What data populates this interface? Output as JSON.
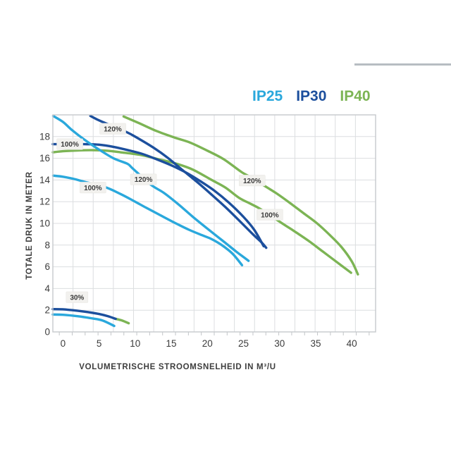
{
  "page": {
    "background": "#ffffff"
  },
  "legend": {
    "items": [
      {
        "label": "IP25",
        "color": "#2aa8dc"
      },
      {
        "label": "IP30",
        "color": "#1c4f9d"
      },
      {
        "label": "IP40",
        "color": "#7cb454"
      }
    ]
  },
  "axes": {
    "x_title": "VOLUMETRISCHE STROOMSNELHEID IN M³/U",
    "y_title": "TOTALE DRUK IN METER"
  },
  "chart_data": {
    "type": "line",
    "title": "",
    "xlabel": "VOLUMETRISCHE STROOMSNELHEID IN M³/U",
    "ylabel": "TOTALE DRUK IN METER",
    "xlim": [
      -1.4,
      43.3
    ],
    "ylim": [
      0,
      20
    ],
    "xticks": [
      0,
      5,
      10,
      15,
      20,
      25,
      30,
      35,
      40
    ],
    "yticks": [
      0,
      2,
      4,
      6,
      8,
      10,
      12,
      14,
      16,
      18
    ],
    "grid": true,
    "grid_columns": 16,
    "grid_rows": 10,
    "minor_tick_count": 25,
    "legend_position": "top-right",
    "style": {
      "grid_color": "#dcdee0",
      "frame_color": "#c6c9cc",
      "tick_text_color": "#3c3c3c",
      "annotation_bg": "#f2f1ee",
      "annotation_text": "#3a3a3a"
    },
    "colors": {
      "IP25": "#2aa8dc",
      "IP30": "#1c4f9d",
      "IP40": "#7cb454"
    },
    "series": [
      {
        "name": "IP40 120%",
        "model": "IP40",
        "speed": "120%",
        "points": [
          [
            8.4,
            19.85
          ],
          [
            10.5,
            19.25
          ],
          [
            13,
            18.5
          ],
          [
            15.5,
            17.9
          ],
          [
            17.6,
            17.45
          ],
          [
            20,
            16.7
          ],
          [
            22.3,
            15.9
          ],
          [
            24.8,
            14.7
          ],
          [
            26.5,
            14.1
          ],
          [
            27.7,
            13.55
          ],
          [
            29.5,
            12.8
          ],
          [
            31.3,
            11.95
          ],
          [
            33.3,
            10.95
          ],
          [
            35.2,
            10.0
          ],
          [
            37,
            8.9
          ],
          [
            38.6,
            7.8
          ],
          [
            40,
            6.5
          ],
          [
            40.85,
            5.3
          ]
        ]
      },
      {
        "name": "IP40 100%",
        "model": "IP40",
        "speed": "100%",
        "points": [
          [
            -1.4,
            16.55
          ],
          [
            0,
            16.65
          ],
          [
            2,
            16.72
          ],
          [
            4,
            16.75
          ],
          [
            6,
            16.7
          ],
          [
            8,
            16.55
          ],
          [
            10.8,
            16.3
          ],
          [
            13,
            15.95
          ],
          [
            15.7,
            15.5
          ],
          [
            18,
            14.95
          ],
          [
            20.6,
            14.0
          ],
          [
            22.5,
            13.3
          ],
          [
            24.4,
            12.35
          ],
          [
            26,
            11.8
          ],
          [
            27.4,
            11.3
          ],
          [
            30.6,
            9.9
          ],
          [
            32,
            9.3
          ],
          [
            34,
            8.4
          ],
          [
            36,
            7.4
          ],
          [
            38,
            6.4
          ],
          [
            39.9,
            5.45
          ]
        ]
      },
      {
        "name": "IP40 30%",
        "model": "IP40",
        "speed": "30%",
        "points": [
          [
            7.2,
            1.22
          ],
          [
            8.2,
            1.05
          ],
          [
            9.1,
            0.8
          ]
        ]
      },
      {
        "name": "IP30 120%",
        "model": "IP30",
        "speed": "120%",
        "points": [
          [
            3.8,
            19.9
          ],
          [
            5.3,
            19.4
          ],
          [
            8.7,
            18.45
          ],
          [
            10.5,
            17.8
          ],
          [
            12.6,
            16.95
          ],
          [
            14.5,
            16.05
          ],
          [
            16.4,
            15.0
          ],
          [
            18.6,
            13.8
          ],
          [
            20.5,
            12.7
          ],
          [
            22.5,
            11.5
          ],
          [
            24.5,
            10.2
          ],
          [
            26.3,
            9.0
          ],
          [
            27.5,
            8.25
          ],
          [
            28.15,
            7.75
          ]
        ]
      },
      {
        "name": "IP30 100%",
        "model": "IP30",
        "speed": "100%",
        "points": [
          [
            -1.4,
            17.3
          ],
          [
            0,
            17.3
          ],
          [
            3,
            17.3
          ],
          [
            5,
            17.25
          ],
          [
            7,
            17.05
          ],
          [
            9,
            16.75
          ],
          [
            11,
            16.4
          ],
          [
            13,
            15.9
          ],
          [
            15,
            15.35
          ],
          [
            17,
            14.7
          ],
          [
            19,
            13.9
          ],
          [
            21,
            13.0
          ],
          [
            23,
            11.9
          ],
          [
            25,
            10.6
          ],
          [
            26.5,
            9.4
          ],
          [
            27.8,
            7.9
          ]
        ]
      },
      {
        "name": "IP30 30%",
        "model": "IP30",
        "speed": "30%",
        "points": [
          [
            -1.4,
            2.1
          ],
          [
            0,
            2.08
          ],
          [
            2,
            1.95
          ],
          [
            3.5,
            1.82
          ],
          [
            5,
            1.65
          ],
          [
            6.2,
            1.45
          ],
          [
            7.3,
            1.2
          ]
        ]
      },
      {
        "name": "IP25 120%",
        "model": "IP25",
        "speed": "120%",
        "points": [
          [
            -1.35,
            19.9
          ],
          [
            0,
            19.35
          ],
          [
            1.25,
            18.6
          ],
          [
            3,
            17.7
          ],
          [
            5,
            16.8
          ],
          [
            7,
            16.0
          ],
          [
            8.9,
            15.5
          ],
          [
            9.6,
            15.1
          ],
          [
            12.1,
            13.6
          ],
          [
            14,
            12.8
          ],
          [
            16,
            11.75
          ],
          [
            18,
            10.6
          ],
          [
            20.6,
            9.2
          ],
          [
            22.5,
            8.2
          ],
          [
            24,
            7.4
          ],
          [
            25,
            6.9
          ],
          [
            25.7,
            6.55
          ]
        ]
      },
      {
        "name": "IP25 100%",
        "model": "IP25",
        "speed": "100%",
        "points": [
          [
            -1.35,
            14.4
          ],
          [
            0,
            14.3
          ],
          [
            1.5,
            14.1
          ],
          [
            2.9,
            13.85
          ],
          [
            5.8,
            13.35
          ],
          [
            8,
            12.7
          ],
          [
            10,
            12.0
          ],
          [
            11.5,
            11.45
          ],
          [
            13.5,
            10.75
          ],
          [
            15.5,
            10.05
          ],
          [
            17.5,
            9.4
          ],
          [
            19.5,
            8.85
          ],
          [
            20.6,
            8.55
          ],
          [
            22,
            8.0
          ],
          [
            23.5,
            7.2
          ],
          [
            24.8,
            6.15
          ]
        ]
      },
      {
        "name": "IP25 30%",
        "model": "IP25",
        "speed": "30%",
        "points": [
          [
            -1.4,
            1.6
          ],
          [
            0,
            1.58
          ],
          [
            2,
            1.45
          ],
          [
            4,
            1.25
          ],
          [
            5.5,
            1.05
          ],
          [
            7.1,
            0.55
          ]
        ]
      }
    ],
    "annotations": [
      {
        "text": "120%",
        "x": 6.9,
        "y": 18.72,
        "series": "IP30 120%"
      },
      {
        "text": "100%",
        "x": 0.95,
        "y": 17.3,
        "series": "IP30 100%"
      },
      {
        "text": "120%",
        "x": 11.15,
        "y": 14.05,
        "series": "IP25 120%"
      },
      {
        "text": "100%",
        "x": 4.15,
        "y": 13.3,
        "series": "IP25 100%"
      },
      {
        "text": "120%",
        "x": 26.2,
        "y": 13.95,
        "series": "IP40 120%"
      },
      {
        "text": "100%",
        "x": 28.65,
        "y": 10.8,
        "series": "IP40 100%"
      },
      {
        "text": "30%",
        "x": 1.95,
        "y": 3.2,
        "series": "30% group"
      }
    ]
  }
}
